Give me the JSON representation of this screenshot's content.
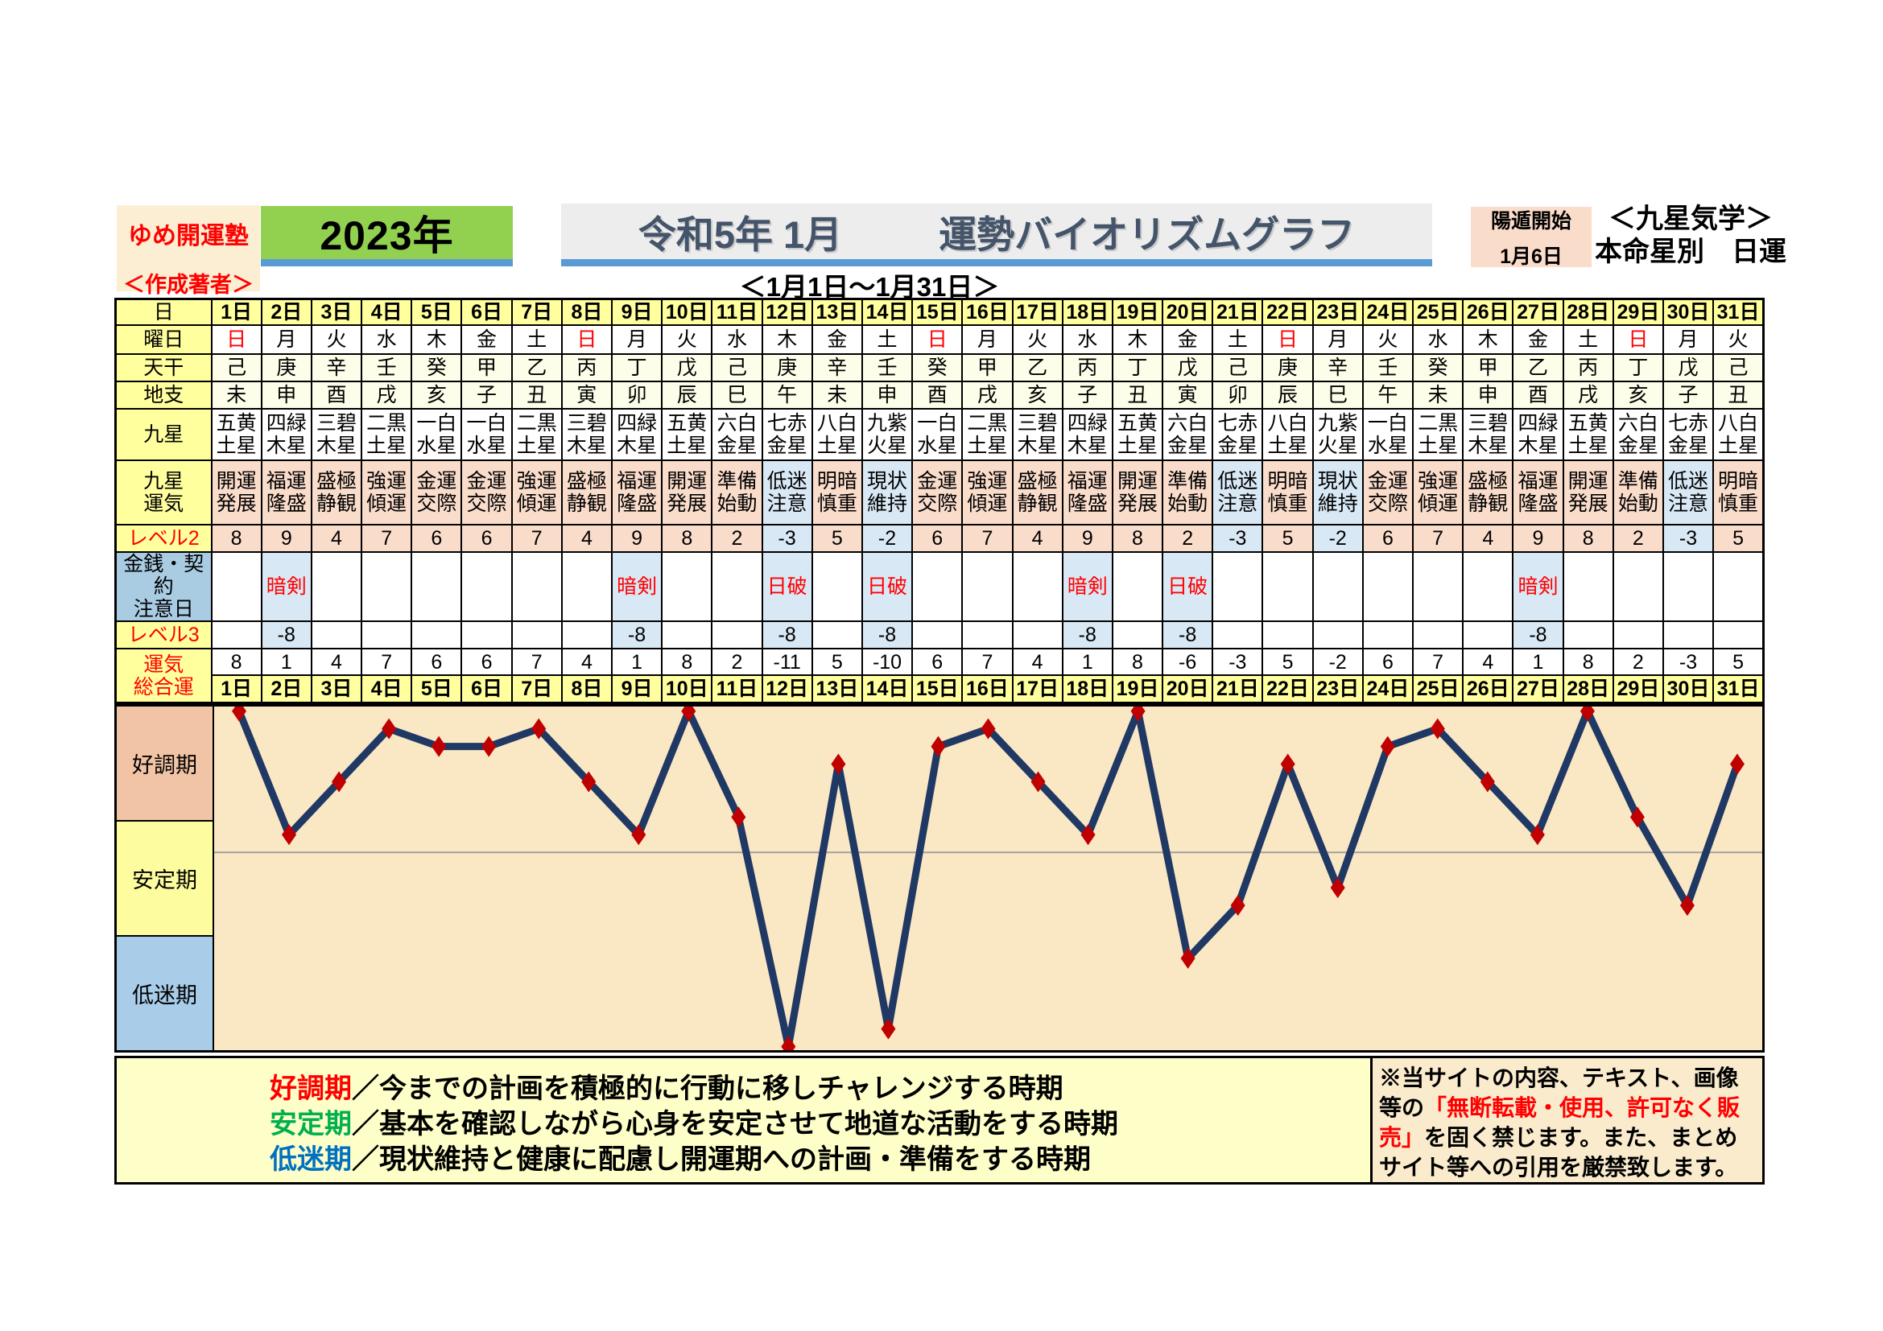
{
  "header": {
    "site_name": "ゆめ開運塾",
    "author_label": "＜作成著者＞",
    "year": "2023年",
    "title_era": "令和5年 1月",
    "title_main": "運勢バイオリズムグラフ",
    "subtitle": "＜1月1日～1月31日＞",
    "yangton_label": "陽遁開始",
    "yangton_date": "1月6日",
    "school": "＜九星気学＞",
    "school_sub": "本命星別　日運"
  },
  "table": {
    "labels": {
      "day": "日",
      "weekday": "曜日",
      "tenkan": "天干",
      "chishi": "地支",
      "kyusei": "九星",
      "unki": "九星\n運気",
      "level2": "レベル2",
      "caution": "金銭・契約\n注意日",
      "level3": "レベル3",
      "total": "運気\n総合運"
    },
    "days": [
      "1日",
      "2日",
      "3日",
      "4日",
      "5日",
      "6日",
      "7日",
      "8日",
      "9日",
      "10日",
      "11日",
      "12日",
      "13日",
      "14日",
      "15日",
      "16日",
      "17日",
      "18日",
      "19日",
      "20日",
      "21日",
      "22日",
      "23日",
      "24日",
      "25日",
      "26日",
      "27日",
      "28日",
      "29日",
      "30日",
      "31日"
    ],
    "weekdays": [
      "日",
      "月",
      "火",
      "水",
      "木",
      "金",
      "土",
      "日",
      "月",
      "火",
      "水",
      "木",
      "金",
      "土",
      "日",
      "月",
      "火",
      "水",
      "木",
      "金",
      "土",
      "日",
      "月",
      "火",
      "水",
      "木",
      "金",
      "土",
      "日",
      "月",
      "火"
    ],
    "tenkan": [
      "己",
      "庚",
      "辛",
      "壬",
      "癸",
      "甲",
      "乙",
      "丙",
      "丁",
      "戊",
      "己",
      "庚",
      "辛",
      "壬",
      "癸",
      "甲",
      "乙",
      "丙",
      "丁",
      "戊",
      "己",
      "庚",
      "辛",
      "壬",
      "癸",
      "甲",
      "乙",
      "丙",
      "丁",
      "戊",
      "己"
    ],
    "chishi": [
      "未",
      "申",
      "酉",
      "戌",
      "亥",
      "子",
      "丑",
      "寅",
      "卯",
      "辰",
      "巳",
      "午",
      "未",
      "申",
      "酉",
      "戌",
      "亥",
      "子",
      "丑",
      "寅",
      "卯",
      "辰",
      "巳",
      "午",
      "未",
      "申",
      "酉",
      "戌",
      "亥",
      "子",
      "丑"
    ],
    "kyusei": [
      "五黄\n土星",
      "四緑\n木星",
      "三碧\n木星",
      "二黒\n土星",
      "一白\n水星",
      "一白\n水星",
      "二黒\n土星",
      "三碧\n木星",
      "四緑\n木星",
      "五黄\n土星",
      "六白\n金星",
      "七赤\n金星",
      "八白\n土星",
      "九紫\n火星",
      "一白\n水星",
      "二黒\n土星",
      "三碧\n木星",
      "四緑\n木星",
      "五黄\n土星",
      "六白\n金星",
      "七赤\n金星",
      "八白\n土星",
      "九紫\n火星",
      "一白\n水星",
      "二黒\n土星",
      "三碧\n木星",
      "四緑\n木星",
      "五黄\n土星",
      "六白\n金星",
      "七赤\n金星",
      "八白\n土星"
    ],
    "unki": [
      "開運\n発展",
      "福運\n隆盛",
      "盛極\n静観",
      "強運\n傾運",
      "金運\n交際",
      "金運\n交際",
      "強運\n傾運",
      "盛極\n静観",
      "福運\n隆盛",
      "開運\n発展",
      "準備\n始動",
      "低迷\n注意",
      "明暗\n慎重",
      "現状\n維持",
      "金運\n交際",
      "強運\n傾運",
      "盛極\n静観",
      "福運\n隆盛",
      "開運\n発展",
      "準備\n始動",
      "低迷\n注意",
      "明暗\n慎重",
      "現状\n維持",
      "金運\n交際",
      "強運\n傾運",
      "盛極\n静観",
      "福運\n隆盛",
      "開運\n発展",
      "準備\n始動",
      "低迷\n注意",
      "明暗\n慎重"
    ],
    "level2": [
      8,
      9,
      4,
      7,
      6,
      6,
      7,
      4,
      9,
      8,
      2,
      -3,
      5,
      -2,
      6,
      7,
      4,
      9,
      8,
      2,
      -3,
      5,
      -2,
      6,
      7,
      4,
      9,
      8,
      2,
      -3,
      5
    ],
    "caution": [
      "",
      "暗剣",
      "",
      "",
      "",
      "",
      "",
      "",
      "暗剣",
      "",
      "",
      "日破",
      "",
      "日破",
      "",
      "",
      "",
      "暗剣",
      "",
      "日破",
      "",
      "",
      "",
      "",
      "",
      "",
      "暗剣",
      "",
      "",
      "",
      ""
    ],
    "level3": [
      "",
      "-8",
      "",
      "",
      "",
      "",
      "",
      "",
      "-8",
      "",
      "",
      "-8",
      "",
      "-8",
      "",
      "",
      "",
      "-8",
      "",
      "-8",
      "",
      "",
      "",
      "",
      "",
      "",
      "-8",
      "",
      "",
      "",
      ""
    ],
    "total": [
      8,
      1,
      4,
      7,
      6,
      6,
      7,
      4,
      1,
      8,
      2,
      -11,
      5,
      -10,
      6,
      7,
      4,
      1,
      8,
      -6,
      -3,
      5,
      -2,
      6,
      7,
      4,
      1,
      8,
      2,
      -3,
      5
    ]
  },
  "chart_data": {
    "type": "line",
    "title": "運勢バイオリズムグラフ（1月 日運）",
    "x_labels": [
      "1日",
      "2日",
      "3日",
      "4日",
      "5日",
      "6日",
      "7日",
      "8日",
      "9日",
      "10日",
      "11日",
      "12日",
      "13日",
      "14日",
      "15日",
      "16日",
      "17日",
      "18日",
      "19日",
      "20日",
      "21日",
      "22日",
      "23日",
      "24日",
      "25日",
      "26日",
      "27日",
      "28日",
      "29日",
      "30日",
      "31日"
    ],
    "values": [
      8,
      1,
      4,
      7,
      6,
      6,
      7,
      4,
      1,
      8,
      2,
      -11,
      5,
      -10,
      6,
      7,
      4,
      1,
      8,
      -6,
      -3,
      5,
      -2,
      6,
      7,
      4,
      1,
      8,
      2,
      -3,
      5
    ],
    "ymax": 8.26,
    "ymin": -11.2,
    "zero_line": 0,
    "grid": false,
    "line_color": "#1F3864",
    "marker_color": "#C00000",
    "zero_line_color": "#A0A0A0",
    "plot_bg": "#FAE7C4",
    "zones": [
      {
        "label": "好調期",
        "color": "#F2C4A6"
      },
      {
        "label": "安定期",
        "color": "#FDFD9F"
      },
      {
        "label": "低迷期",
        "color": "#A9CDE9"
      }
    ]
  },
  "legend": {
    "items": [
      {
        "term": "好調期",
        "color": "#FF0000",
        "desc": "／今までの計画を積極的に行動に移しチャレンジする時期"
      },
      {
        "term": "安定期",
        "color": "#00B050",
        "desc": "／基本を確認しながら心身を安定させて地道な活動をする時期"
      },
      {
        "term": "低迷期",
        "color": "#0070C0",
        "desc": "／現状維持と健康に配慮し開運期への計画・準備をする時期"
      }
    ]
  },
  "notice": {
    "prefix": "※当サイトの内容、テキスト、画像等の",
    "highlight": "「無断転載・使用、許可なく販売」",
    "suffix": "を固く禁じます。また、まとめサイト等への引用を厳禁致します。"
  },
  "colors": {
    "header_green": "#92D050",
    "accent_bar_blue": "#5B9BD5",
    "title_text": "#44546A",
    "label_yellow": "#FFFF9E",
    "row_pink": "#FADCCB",
    "highlight_blue": "#D9E8F5",
    "caution_label_blue": "#A9CCE3",
    "sunday_red": "#FF0000",
    "chart_bg": "#FAE7C4",
    "line_navy": "#1F3864",
    "marker_red": "#C00000"
  }
}
